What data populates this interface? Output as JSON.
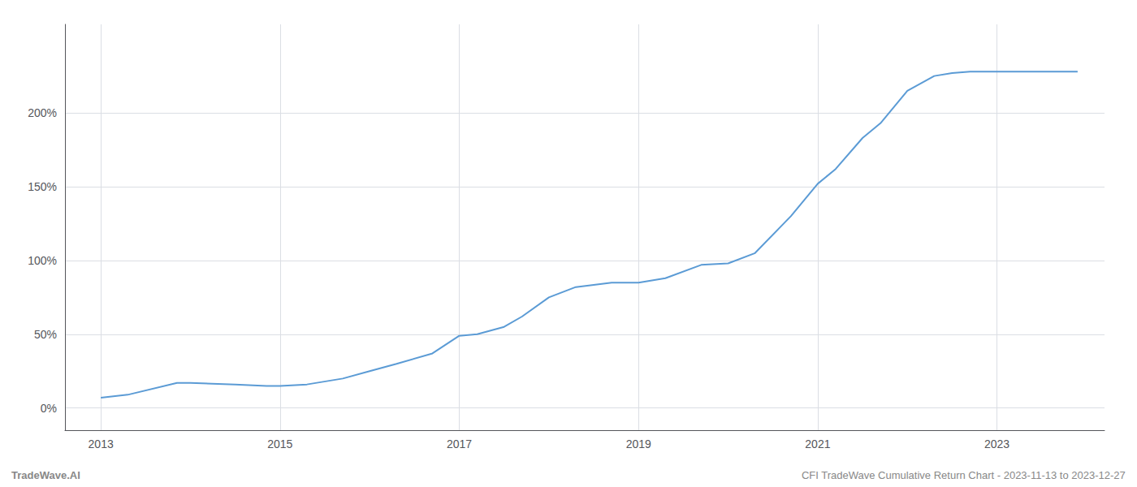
{
  "chart_data": {
    "type": "line",
    "title": "CFI TradeWave Cumulative Return Chart - 2023-11-13 to 2023-12-27",
    "annotations": [
      "TradeWave.AI"
    ],
    "x": [
      2013.0,
      2013.3,
      2013.85,
      2014.0,
      2014.5,
      2014.85,
      2015.0,
      2015.3,
      2015.7,
      2016.0,
      2016.3,
      2016.7,
      2017.0,
      2017.2,
      2017.5,
      2017.7,
      2018.0,
      2018.3,
      2018.7,
      2019.0,
      2019.3,
      2019.7,
      2020.0,
      2020.3,
      2020.7,
      2021.0,
      2021.2,
      2021.5,
      2021.7,
      2022.0,
      2022.3,
      2022.5,
      2022.7,
      2023.0,
      2023.5,
      2023.9
    ],
    "values": [
      7,
      9,
      17,
      17,
      16,
      15,
      15,
      16,
      20,
      25,
      30,
      37,
      49,
      50,
      55,
      62,
      75,
      82,
      85,
      85,
      88,
      97,
      98,
      105,
      130,
      152,
      162,
      183,
      193,
      215,
      225,
      227,
      228,
      228,
      228,
      228
    ],
    "color": "#5b9bd5",
    "xlim": [
      2012.6,
      2024.2
    ],
    "xticks": [
      2013,
      2015,
      2017,
      2019,
      2021,
      2023
    ],
    "ylim": [
      -15,
      260
    ],
    "yticks": [
      {
        "value": 0,
        "label": "0%"
      },
      {
        "value": 50,
        "label": "50%"
      },
      {
        "value": 100,
        "label": "100%"
      },
      {
        "value": 150,
        "label": "150%"
      },
      {
        "value": 200,
        "label": "200%"
      }
    ],
    "grid": true
  }
}
